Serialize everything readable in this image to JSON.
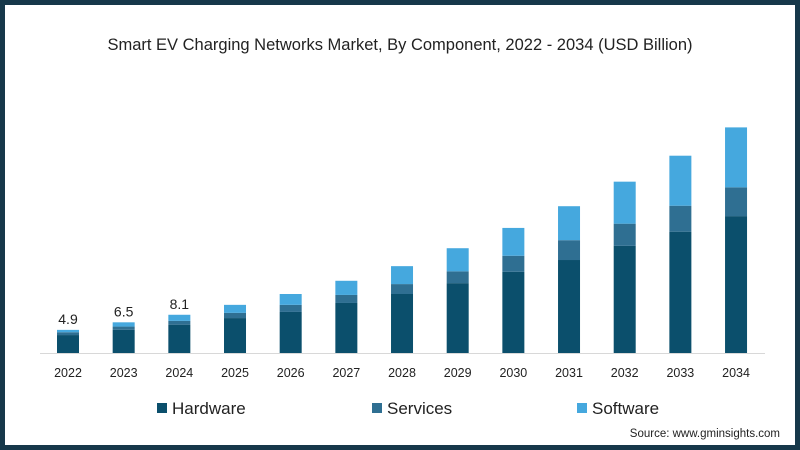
{
  "chart_data": {
    "type": "bar",
    "stacked": true,
    "title": "Smart EV Charging Networks Market, By Component, 2022 - 2034 (USD Billion)",
    "xlabel": "",
    "ylabel": "",
    "ylim": [
      0,
      50
    ],
    "grid": false,
    "legend_position": "bottom",
    "categories": [
      "2022",
      "2023",
      "2024",
      "2025",
      "2026",
      "2027",
      "2028",
      "2029",
      "2030",
      "2031",
      "2032",
      "2033",
      "2034"
    ],
    "series": [
      {
        "name": "Hardware",
        "color": "#0b4f6c",
        "values": [
          3.8,
          4.9,
          6.0,
          7.4,
          8.7,
          10.6,
          12.5,
          14.8,
          17.2,
          19.7,
          22.7,
          25.7,
          29.0
        ]
      },
      {
        "name": "Services",
        "color": "#2f6f92",
        "values": [
          0.6,
          0.7,
          0.8,
          1.1,
          1.5,
          1.7,
          2.1,
          2.5,
          3.4,
          4.2,
          4.7,
          5.5,
          6.1
        ]
      },
      {
        "name": "Software",
        "color": "#45a8de",
        "values": [
          0.5,
          0.9,
          1.3,
          1.7,
          2.3,
          3.0,
          3.8,
          4.9,
          5.9,
          7.2,
          8.9,
          10.6,
          12.7
        ]
      }
    ],
    "data_labels": [
      {
        "category": "2022",
        "text": "4.9"
      },
      {
        "category": "2023",
        "text": "6.5"
      },
      {
        "category": "2024",
        "text": "8.1"
      }
    ]
  },
  "source": "Source: www.gminsights.com"
}
